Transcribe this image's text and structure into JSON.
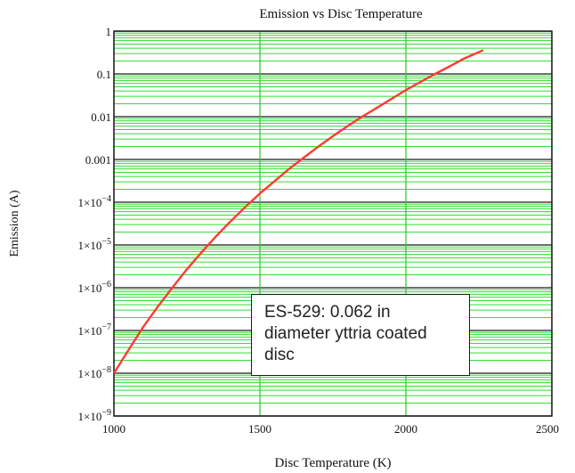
{
  "chart_data": {
    "type": "line",
    "title": "Emission vs Disc Temperature",
    "xlabel": "Disc Temperature (K)",
    "ylabel": "Emission (A)",
    "xlim": [
      1000,
      2500
    ],
    "ylim": [
      1e-09,
      1
    ],
    "yscale": "log",
    "grid": true,
    "x_ticks": [
      {
        "value": 1000,
        "label": "1000"
      },
      {
        "value": 1500,
        "label": "1500"
      },
      {
        "value": 2000,
        "label": "2000"
      },
      {
        "value": 2500,
        "label": "2500"
      }
    ],
    "y_ticks": [
      {
        "exp": 0,
        "base": "1",
        "sup": ""
      },
      {
        "exp": -1,
        "base": "0.1",
        "sup": ""
      },
      {
        "exp": -2,
        "base": "0.01",
        "sup": ""
      },
      {
        "exp": -3,
        "base": "0.001",
        "sup": ""
      },
      {
        "exp": -4,
        "base": "1×10",
        "sup": "−4"
      },
      {
        "exp": -5,
        "base": "1×10",
        "sup": "−5"
      },
      {
        "exp": -6,
        "base": "1×10",
        "sup": "−6"
      },
      {
        "exp": -7,
        "base": "1×10",
        "sup": "−7"
      },
      {
        "exp": -8,
        "base": "1×10",
        "sup": "−8"
      },
      {
        "exp": -9,
        "base": "1×10",
        "sup": "−9"
      }
    ],
    "series": [
      {
        "color": "#ff3b30",
        "x": [
          1000,
          1050,
          1100,
          1150,
          1200,
          1250,
          1300,
          1350,
          1400,
          1450,
          1500,
          1550,
          1600,
          1650,
          1700,
          1750,
          1800,
          1850,
          1900,
          1950,
          2000,
          2050,
          2100,
          2150,
          2200,
          2265
        ],
        "y": [
          1e-08,
          3.5e-08,
          1.2e-07,
          3.6e-07,
          1e-06,
          2.7e-06,
          6.7e-06,
          1.6e-05,
          3.6e-05,
          7.7e-05,
          0.00016,
          0.00031,
          0.0006,
          0.0011,
          0.002,
          0.0035,
          0.006,
          0.01,
          0.016,
          0.026,
          0.042,
          0.065,
          0.1,
          0.15,
          0.23,
          0.36
        ]
      }
    ],
    "annotation": "ES-529: 0.062 in\ndiameter yttria coated\ndisc"
  }
}
